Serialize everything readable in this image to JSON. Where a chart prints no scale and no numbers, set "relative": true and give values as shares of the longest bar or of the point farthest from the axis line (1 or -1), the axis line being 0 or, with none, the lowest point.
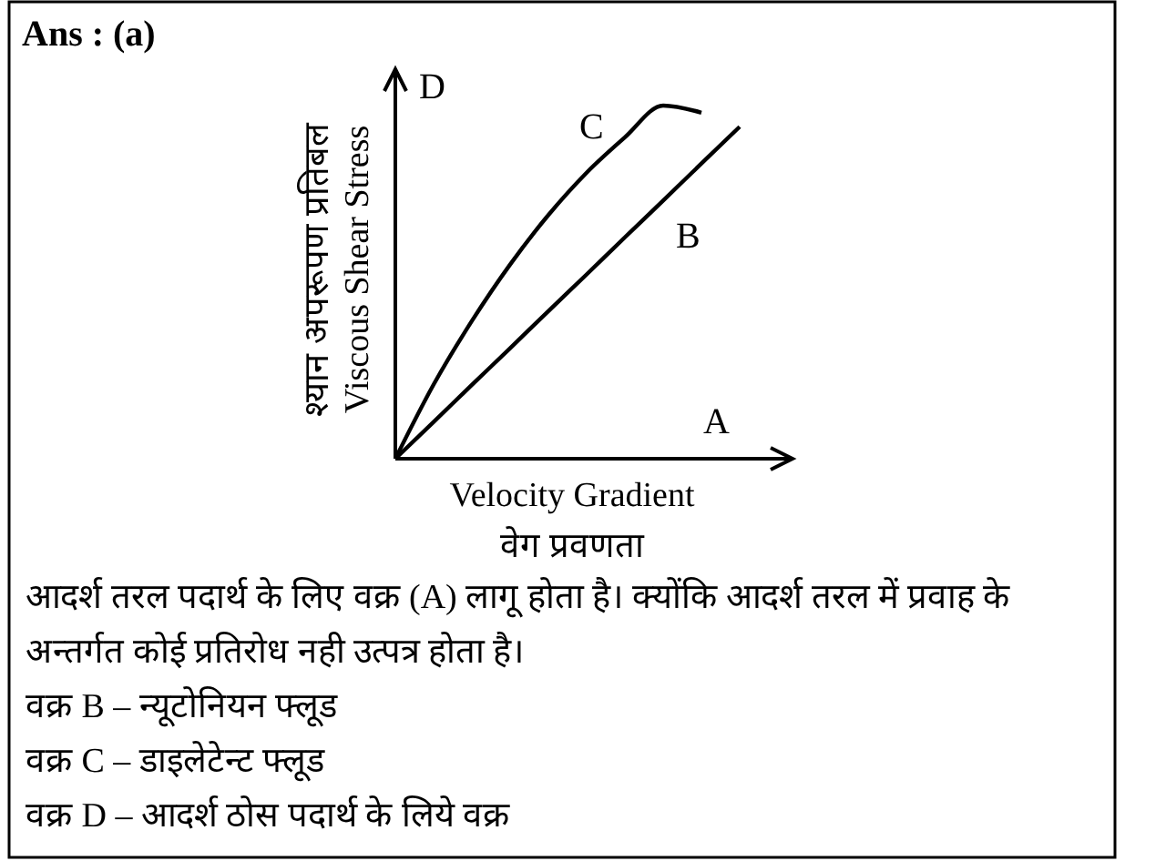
{
  "chart_data": {
    "type": "line",
    "title": "Ans : (a)",
    "xlabel": "Velocity Gradient\nवेग प्रवणता",
    "ylabel": "श्यान अपरूपण प्रतिबल\nViscous Shear Stress",
    "relative": true,
    "line_style": "solid",
    "categories": [
      null,
      null,
      null,
      null,
      null,
      null,
      null,
      null,
      null,
      null
    ],
    "series": [
      {
        "name": "C",
        "color": "#000000",
        "values": [
          0,
          0.21,
          0.39,
          0.55,
          0.69,
          0.81,
          0.91,
          1.0,
          0.98,
          null
        ]
      },
      {
        "name": "B",
        "color": "#000000",
        "values": [
          0,
          0.104,
          0.209,
          0.313,
          0.418,
          0.522,
          0.627,
          0.731,
          0.836,
          0.94
        ]
      }
    ],
    "annotations": [
      "D",
      "A",
      "आदर्श तरल पदार्थ के लिए वक्र (A) लागू होता है। क्योंकि आदर्श तरल में प्रवाह के अन्तर्गत कोई प्रतिरोध नही उत्पत्र होता है।",
      "वक्र B – न्यूटोनियन फ्लूड",
      "वक्र C – डाइलेटेन्ट फ्लूड",
      "वक्र D – आदर्श ठोस पदार्थ के लिये वक्र"
    ]
  }
}
